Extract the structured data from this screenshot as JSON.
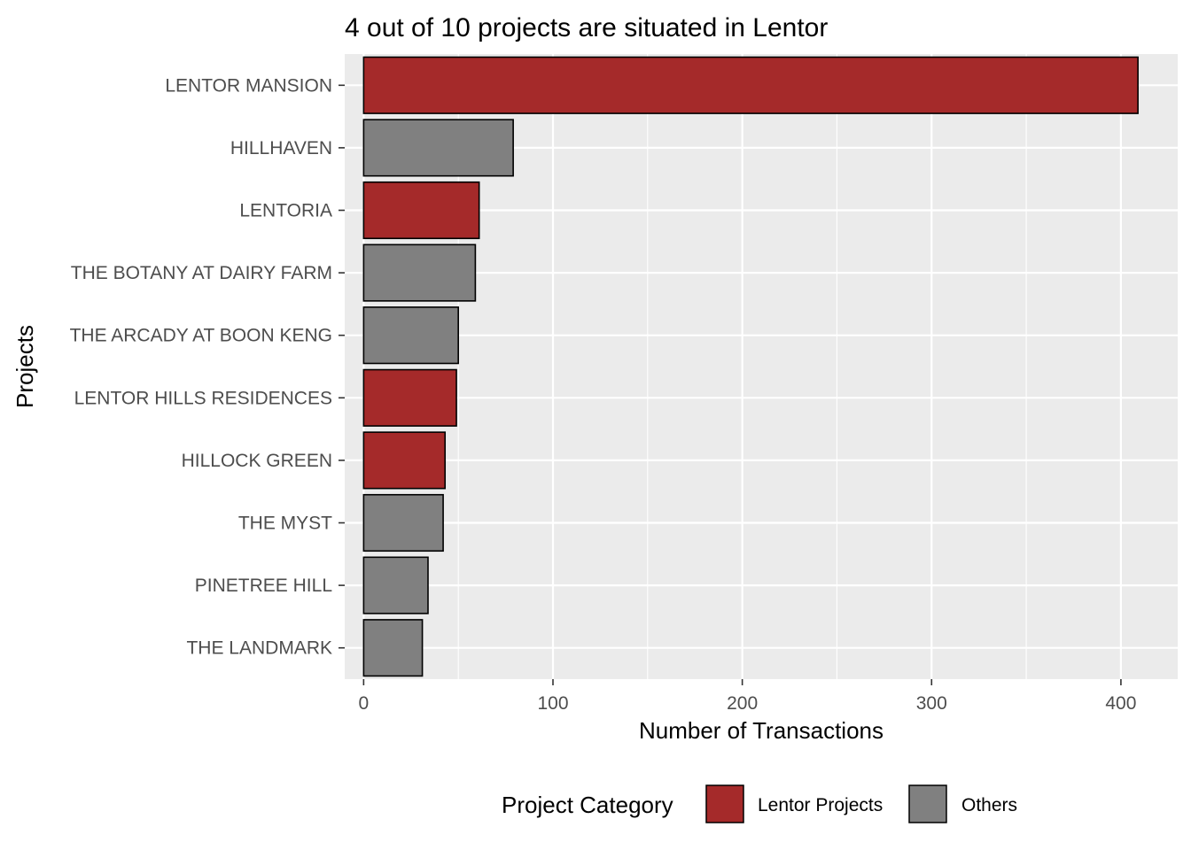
{
  "chart_data": {
    "type": "bar",
    "orientation": "horizontal",
    "title": "4 out of 10 projects are situated in Lentor",
    "xlabel": "Number of Transactions",
    "ylabel": "Projects",
    "xlim": [
      -10,
      430
    ],
    "xticks": [
      0,
      100,
      200,
      300,
      400
    ],
    "grid": true,
    "categories": [
      "LENTOR MANSION",
      "HILLHAVEN",
      "LENTORIA",
      "THE BOTANY AT DAIRY FARM",
      "THE ARCADY AT BOON KENG",
      "LENTOR HILLS RESIDENCES",
      "HILLOCK GREEN",
      "THE MYST",
      "PINETREE HILL",
      "THE LANDMARK"
    ],
    "values": [
      409,
      79,
      61,
      59,
      50,
      49,
      43,
      42,
      34,
      31
    ],
    "groups": [
      "Lentor Projects",
      "Others",
      "Lentor Projects",
      "Others",
      "Others",
      "Lentor Projects",
      "Lentor Projects",
      "Others",
      "Others",
      "Others"
    ],
    "legend": {
      "title": "Project Category",
      "position": "bottom",
      "entries": [
        {
          "label": "Lentor Projects",
          "color": "#a52a2a"
        },
        {
          "label": "Others",
          "color": "#808080"
        }
      ]
    },
    "colors": {
      "Lentor Projects": "#a52a2a",
      "Others": "#808080",
      "panel_background": "#ebebeb",
      "grid": "#ffffff",
      "bar_outline": "#000000"
    }
  }
}
